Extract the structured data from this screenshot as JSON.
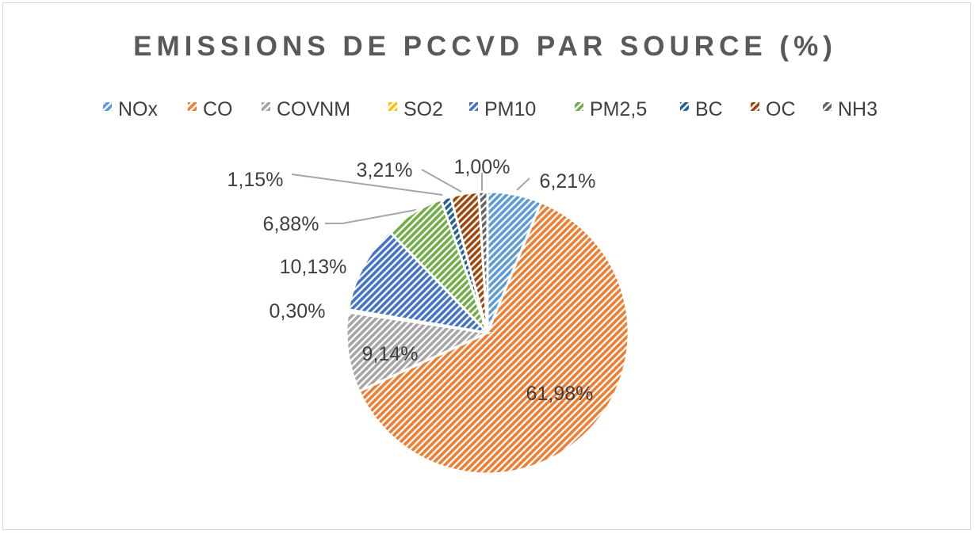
{
  "chart_data": {
    "type": "pie",
    "title": "EMISSIONS DE PCCVD PAR SOURCE (%)",
    "categories": [
      "NOx",
      "CO",
      "COVNM",
      "SO2",
      "PM10",
      "PM2,5",
      "BC",
      "OC",
      "NH3"
    ],
    "values": [
      6.21,
      61.98,
      9.14,
      0.3,
      10.13,
      6.88,
      1.15,
      3.21,
      1.0
    ],
    "labels": [
      "6,21%",
      "61,98%",
      "9,14%",
      "0,30%",
      "10,13%",
      "6,88%",
      "1,15%",
      "3,21%",
      "1,00%"
    ],
    "colors": [
      "#5b9bd5",
      "#ed7d31",
      "#a5a5a5",
      "#ffc000",
      "#4472c4",
      "#70ad47",
      "#255e91",
      "#9e480e",
      "#636363"
    ],
    "legend_position": "top",
    "fill_pattern": "diagonal-hatch",
    "start_angle_deg": 0,
    "direction": "clockwise"
  }
}
